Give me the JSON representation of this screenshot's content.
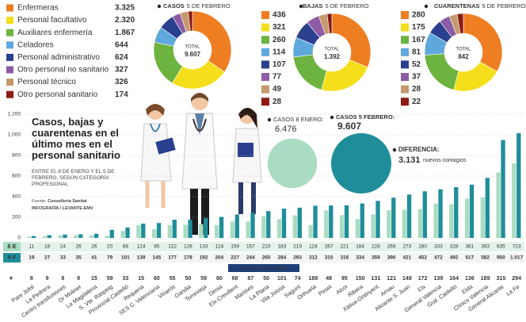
{
  "chart_data": [
    {
      "type": "pie",
      "title": "CASOS",
      "subtitle": "5 DE FEBRERO",
      "center_label": "TOTAL",
      "total": {
        "value": 9607,
        "label": "9.607"
      },
      "categories": [
        "Enfermeras",
        "Personal facultativo",
        "Auxiliares enfermería",
        "Celadores",
        "Personal administrativo",
        "Otro personal no sanitario",
        "Personal técnico",
        "Otro personal sanitario"
      ],
      "values": [
        3325,
        2320,
        1867,
        644,
        624,
        327,
        326,
        174
      ],
      "value_labels": [
        "3.325",
        "2.320",
        "1.867",
        "644",
        "624",
        "327",
        "326",
        "174"
      ],
      "colors": [
        "#ef7d22",
        "#f5df1a",
        "#6db33f",
        "#5fa8dc",
        "#2b3f8f",
        "#8d5ca6",
        "#c49a6c",
        "#8c1c13"
      ]
    },
    {
      "type": "pie",
      "title": "BAJAS",
      "subtitle": "5 DE FEBRERO",
      "center_label": "TOTAL",
      "total": {
        "value": 1392,
        "label": "1.392"
      },
      "values": [
        436,
        321,
        260,
        114,
        107,
        77,
        49,
        28
      ],
      "colors": [
        "#ef7d22",
        "#f5df1a",
        "#6db33f",
        "#5fa8dc",
        "#2b3f8f",
        "#8d5ca6",
        "#c49a6c",
        "#8c1c13"
      ]
    },
    {
      "type": "pie",
      "title": "CUARENTENAS",
      "subtitle": "5 DE FEBRERO",
      "center_label": "TOTAL",
      "total": 842,
      "values": [
        280,
        175,
        167,
        81,
        52,
        37,
        28,
        22
      ],
      "colors": [
        "#ef7d22",
        "#f5df1a",
        "#6db33f",
        "#5fa8dc",
        "#2b3f8f",
        "#8d5ca6",
        "#c49a6c",
        "#8c1c13"
      ]
    },
    {
      "type": "bar",
      "title": "Casos, bajas y cuarentenas en el último mes en el personal sanitario",
      "subtitle": "ENTRE EL 8 DE ENERO Y EL 5 DE FEBRERO, SEGÚN CATEGORÍA PROFESIONAL",
      "source_label": "Fuente:",
      "source": "Conselleria Sanitat",
      "credit": "INFOGRAFÍA / LEVANTE-EMV",
      "categories": [
        "Pare Jofré",
        "La Pedrera",
        "Centro transfusiones",
        "Dr Moliner",
        "La Magdalena",
        "S. Vte. Raspeig",
        "Provincial Castelló",
        "Requena",
        "SES C. Valenciana",
        "Vinaròs",
        "Gandia",
        "Torrevieja",
        "Dènia",
        "Elx-Crevillent",
        "Manises",
        "La Plana",
        "Vila Joiosa",
        "Sagunt",
        "Orihuela",
        "Peset",
        "Alcoi",
        "Ribera",
        "Xàtiva-Ontinyent",
        "Arnau",
        "Alicante S. Juan",
        "Elx",
        "General Valencia",
        "Gral. Castelló",
        "Elda",
        "Clínico Valencia",
        "General Alicante",
        "La Fe"
      ],
      "series": [
        {
          "name": "8 E",
          "color": "#a9dcc2",
          "values": [
            11,
            18,
            24,
            26,
            26,
            20,
            68,
            124,
            85,
            122,
            128,
            133,
            124,
            159,
            157,
            210,
            183,
            219,
            124,
            267,
            221,
            184,
            228,
            269,
            273,
            280,
            333,
            328,
            381,
            393,
            635,
            723
          ]
        },
        {
          "name": "5 F",
          "color": "#1f8e9a",
          "values": [
            19,
            27,
            33,
            35,
            41,
            79,
            101,
            139,
            145,
            177,
            178,
            192,
            204,
            227,
            244,
            260,
            284,
            293,
            312,
            315,
            316,
            334,
            359,
            390,
            421,
            452,
            472,
            492,
            517,
            582,
            950,
            1017
          ],
          "value_labels": [
            "19",
            "27",
            "33",
            "35",
            "41",
            "79",
            "101",
            "139",
            "145",
            "177",
            "178",
            "192",
            "204",
            "227",
            "244",
            "260",
            "284",
            "293",
            "312",
            "315",
            "316",
            "334",
            "359",
            "390",
            "421",
            "452",
            "472",
            "492",
            "517",
            "582",
            "950",
            "1.017"
          ]
        }
      ],
      "increase": {
        "name": "+",
        "label": "Aumento de casos",
        "values": [
          8,
          9,
          9,
          9,
          15,
          59,
          33,
          15,
          60,
          55,
          50,
          59,
          80,
          68,
          87,
          50,
          101,
          74,
          188,
          48,
          95,
          150,
          131,
          121,
          148,
          172,
          139,
          164,
          136,
          189,
          315,
          294
        ]
      },
      "bubbles": [
        {
          "label": "CASOS 8 ENERO:",
          "value": 6476,
          "value_label": "6.476",
          "color": "#a9dcc2"
        },
        {
          "label": "CASOS 5 FEBRERO:",
          "value": 9607,
          "value_label": "9.607",
          "color": "#1f8e9a"
        }
      ],
      "difference": {
        "label": "DIFERENCIA:",
        "value": 3131,
        "value_label": "3.131",
        "note": "nuevos contagios"
      },
      "ylim": [
        0,
        1200
      ],
      "yticks": [
        0,
        200,
        400,
        600,
        800,
        {
          "value": 1000,
          "label": "1.000"
        },
        {
          "value": 1200,
          "label": "1.200"
        }
      ],
      "grid": true
    }
  ]
}
